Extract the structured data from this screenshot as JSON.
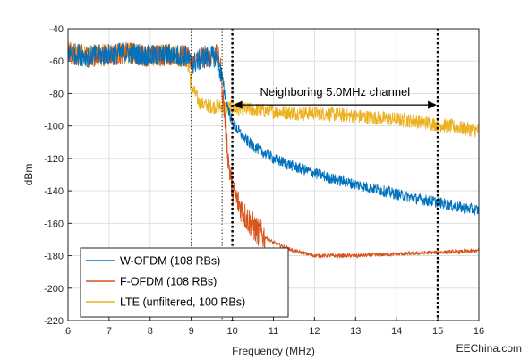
{
  "chart_data": {
    "type": "line",
    "title": "",
    "xlabel": "Frequency (MHz)",
    "ylabel": "dBm",
    "xlim": [
      6,
      16
    ],
    "ylim": [
      -220,
      -40
    ],
    "x_ticks": [
      6,
      7,
      8,
      9,
      10,
      11,
      12,
      13,
      14,
      15,
      16
    ],
    "y_ticks": [
      -220,
      -200,
      -180,
      -160,
      -140,
      -120,
      -100,
      -80,
      -60,
      -40
    ],
    "grid": true,
    "legend_position": "bottom-left",
    "annotation": {
      "text": "Neighboring 5.0MHz channel",
      "x_start": 10,
      "x_end": 15,
      "y": -87
    },
    "vertical_markers": [
      {
        "x": 9.0,
        "style": "dotted-thin"
      },
      {
        "x": 9.75,
        "style": "dotted-thin"
      },
      {
        "x": 10.0,
        "style": "dotted-thick"
      },
      {
        "x": 15.0,
        "style": "dotted-thick"
      }
    ],
    "series": [
      {
        "name": "W-OFDM (108 RBs)",
        "color": "#0072BD",
        "points": [
          [
            6.0,
            -55
          ],
          [
            6.5,
            -57
          ],
          [
            7.0,
            -56
          ],
          [
            7.5,
            -55
          ],
          [
            8.0,
            -57
          ],
          [
            8.5,
            -56
          ],
          [
            8.9,
            -57
          ],
          [
            9.0,
            -62
          ],
          [
            9.3,
            -58
          ],
          [
            9.6,
            -57
          ],
          [
            9.75,
            -70
          ],
          [
            9.85,
            -85
          ],
          [
            10.0,
            -98
          ],
          [
            10.3,
            -108
          ],
          [
            10.6,
            -114
          ],
          [
            11.0,
            -120
          ],
          [
            11.5,
            -125
          ],
          [
            12.0,
            -129
          ],
          [
            12.5,
            -133
          ],
          [
            13.0,
            -136
          ],
          [
            13.5,
            -139
          ],
          [
            14.0,
            -142
          ],
          [
            14.5,
            -145
          ],
          [
            15.0,
            -147
          ],
          [
            15.5,
            -150
          ],
          [
            16.0,
            -152
          ]
        ]
      },
      {
        "name": "F-OFDM (108 RBs)",
        "color": "#D95319",
        "points": [
          [
            6.0,
            -55
          ],
          [
            6.5,
            -57
          ],
          [
            7.0,
            -56
          ],
          [
            7.5,
            -55
          ],
          [
            8.0,
            -57
          ],
          [
            8.5,
            -56
          ],
          [
            8.9,
            -57
          ],
          [
            9.0,
            -62
          ],
          [
            9.3,
            -57
          ],
          [
            9.6,
            -56
          ],
          [
            9.7,
            -60
          ],
          [
            9.8,
            -90
          ],
          [
            9.9,
            -120
          ],
          [
            10.0,
            -140
          ],
          [
            10.3,
            -155
          ],
          [
            10.6,
            -165
          ],
          [
            11.0,
            -172
          ],
          [
            11.5,
            -177
          ],
          [
            12.0,
            -180
          ],
          [
            13.0,
            -180
          ],
          [
            14.0,
            -179
          ],
          [
            15.0,
            -178
          ],
          [
            16.0,
            -177
          ]
        ]
      },
      {
        "name": "LTE (unfiltered, 100 RBs)",
        "color": "#EDB120",
        "points": [
          [
            6.0,
            -55
          ],
          [
            6.5,
            -57
          ],
          [
            7.0,
            -56
          ],
          [
            7.5,
            -55
          ],
          [
            8.0,
            -57
          ],
          [
            8.5,
            -56
          ],
          [
            8.9,
            -57
          ],
          [
            9.0,
            -75
          ],
          [
            9.2,
            -86
          ],
          [
            9.5,
            -88
          ],
          [
            9.7,
            -88
          ],
          [
            10.0,
            -89
          ],
          [
            10.5,
            -90
          ],
          [
            11.0,
            -91
          ],
          [
            11.5,
            -92
          ],
          [
            12.0,
            -92
          ],
          [
            12.5,
            -93
          ],
          [
            13.0,
            -94
          ],
          [
            13.5,
            -95
          ],
          [
            14.0,
            -96
          ],
          [
            14.5,
            -97
          ],
          [
            15.0,
            -99
          ],
          [
            15.5,
            -101
          ],
          [
            16.0,
            -103
          ]
        ]
      }
    ]
  },
  "watermark": "EEChina.com"
}
